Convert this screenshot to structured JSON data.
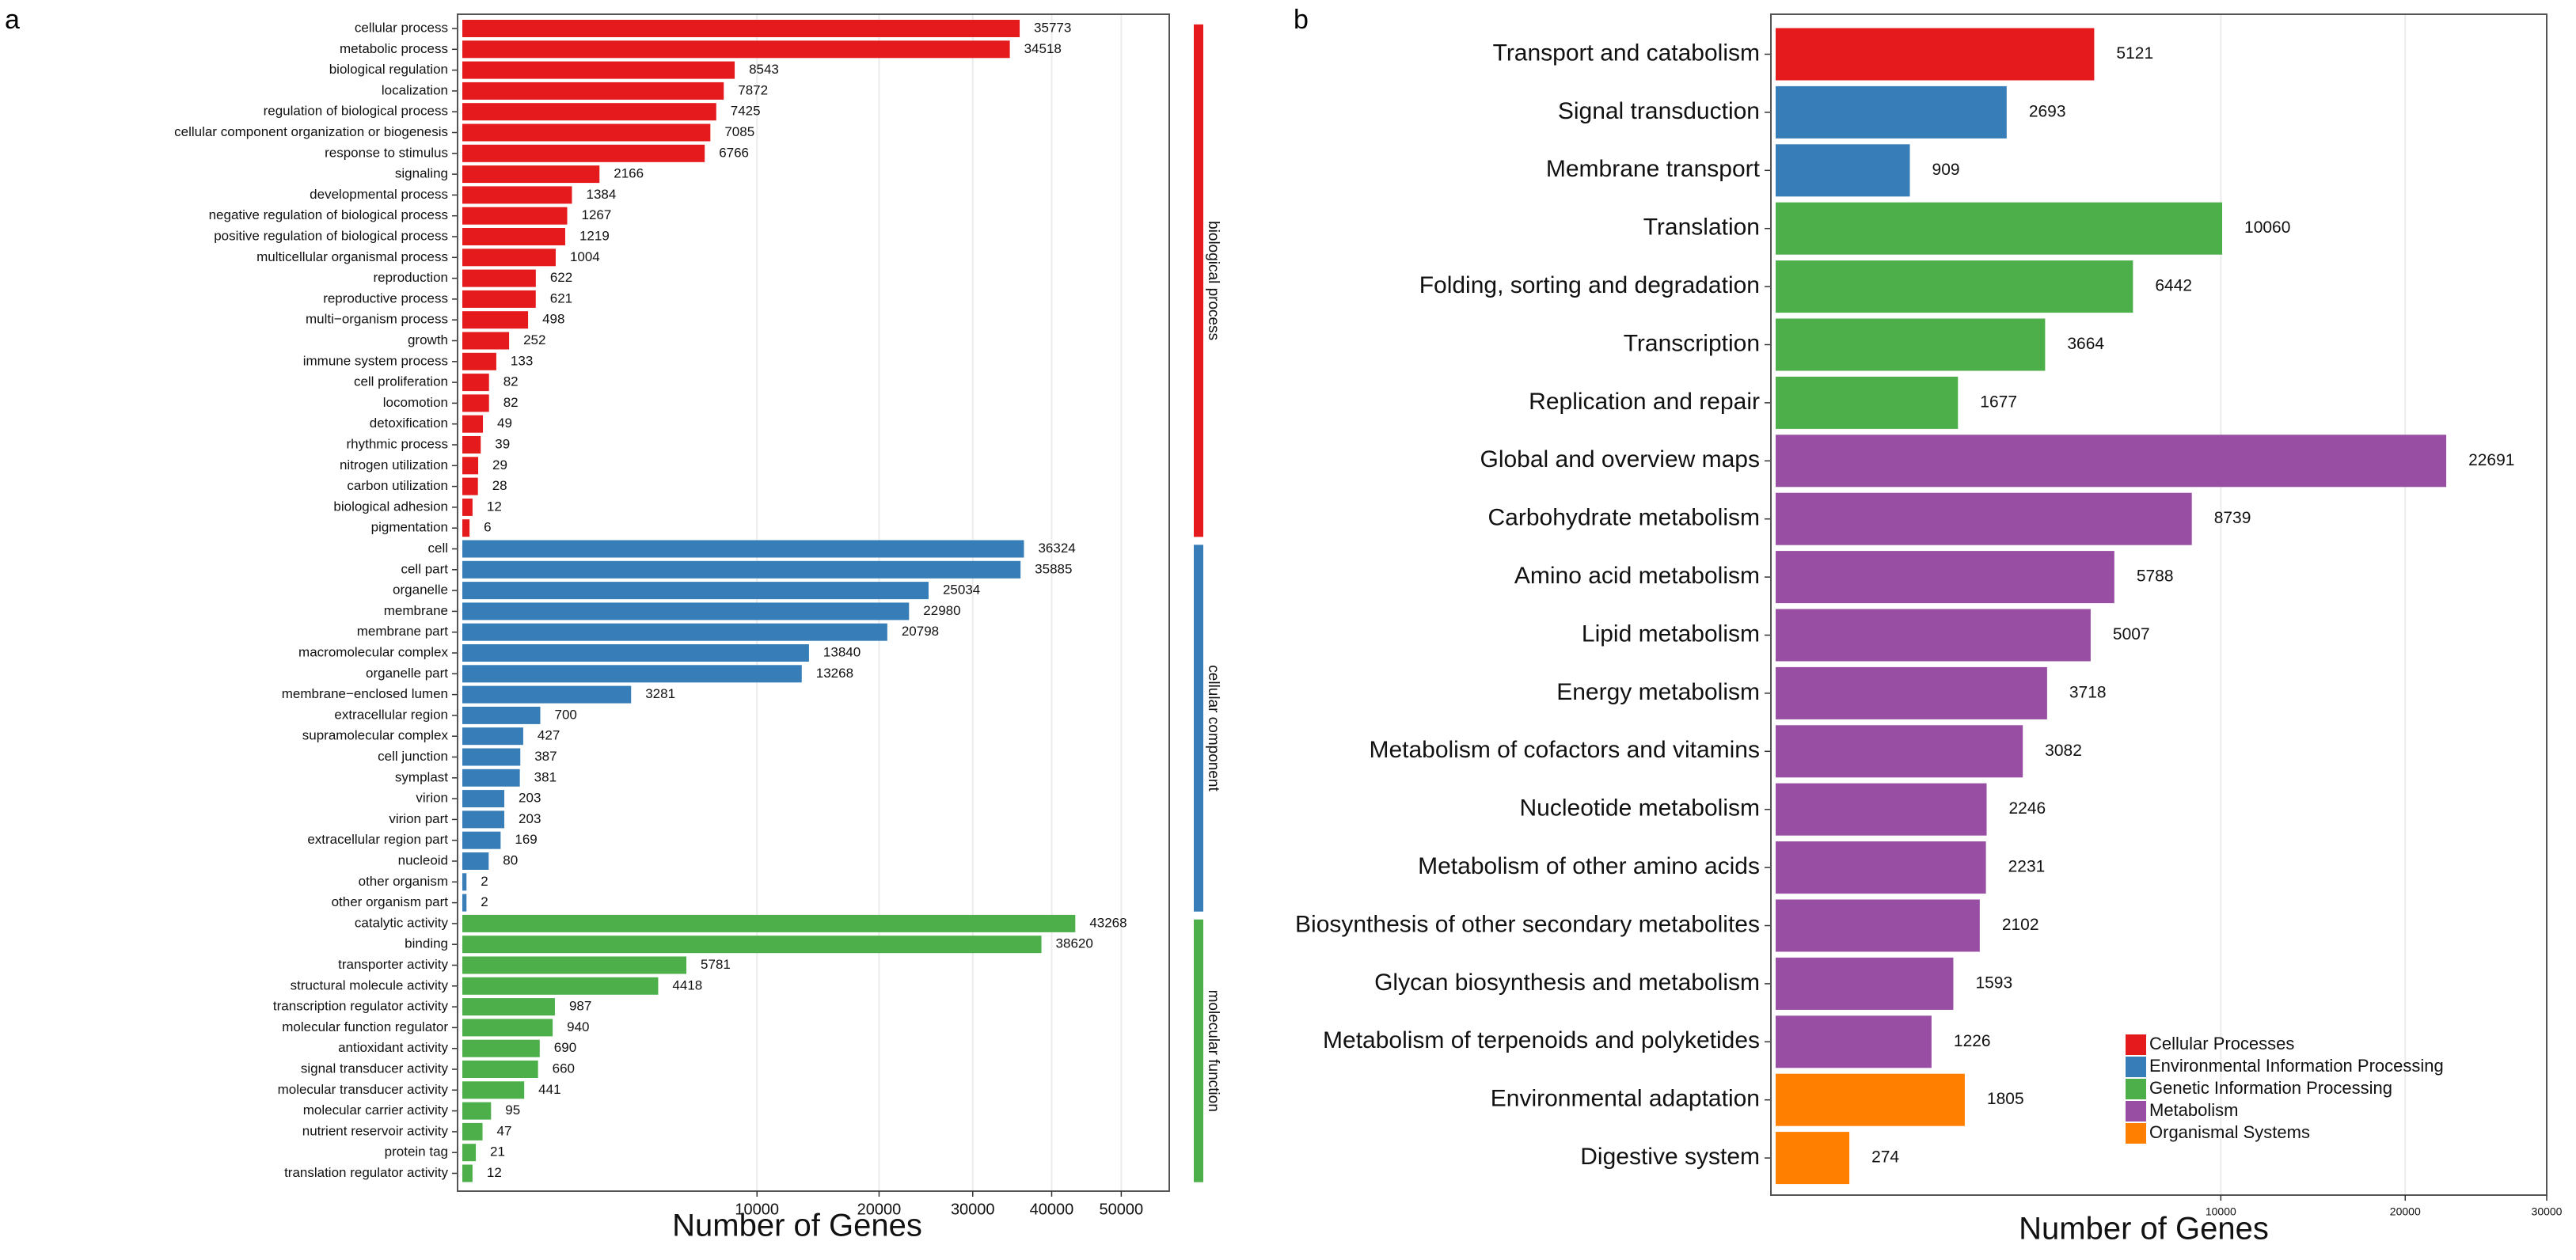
{
  "figure": {
    "panel_a_label": "a",
    "panel_b_label": "b"
  },
  "colors": {
    "biological_process": "#e41a1c",
    "cellular_component": "#377eb8",
    "molecular_function": "#4daf4a",
    "cellular_processes": "#e41a1c",
    "environmental_information_processing": "#377eb8",
    "genetic_information_processing": "#4daf4a",
    "metabolism": "#984ea3",
    "organismal_systems": "#ff7f00"
  },
  "chart_data": [
    {
      "type": "bar",
      "orientation": "horizontal",
      "panel": "a",
      "title": "",
      "xlabel": "Number of Genes",
      "ylabel": "",
      "xscale": "sqrt",
      "xlim": [
        0,
        55000
      ],
      "xticks": [
        10000,
        20000,
        30000,
        40000,
        50000
      ],
      "legend": "strip-right",
      "groups": [
        {
          "name": "biological process",
          "color": "#e41a1c",
          "categories": [
            "cellular process",
            "metabolic process",
            "biological regulation",
            "localization",
            "regulation of biological process",
            "cellular component organization or biogenesis",
            "response to stimulus",
            "signaling",
            "developmental process",
            "negative regulation of biological process",
            "positive regulation of biological process",
            "multicellular organismal process",
            "reproduction",
            "reproductive process",
            "multi−organism process",
            "growth",
            "immune system process",
            "cell proliferation",
            "locomotion",
            "detoxification",
            "rhythmic process",
            "nitrogen utilization",
            "carbon utilization",
            "biological adhesion",
            "pigmentation"
          ],
          "values": [
            35773,
            34518,
            8543,
            7872,
            7425,
            7085,
            6766,
            2166,
            1384,
            1267,
            1219,
            1004,
            622,
            621,
            498,
            252,
            133,
            82,
            82,
            49,
            39,
            29,
            28,
            12,
            6
          ]
        },
        {
          "name": "cellular component",
          "color": "#377eb8",
          "categories": [
            "cell",
            "cell part",
            "organelle",
            "membrane",
            "membrane part",
            "macromolecular complex",
            "organelle part",
            "membrane−enclosed lumen",
            "extracellular region",
            "supramolecular complex",
            "cell junction",
            "symplast",
            "virion",
            "virion part",
            "extracellular region part",
            "nucleoid",
            "other organism",
            "other organism part"
          ],
          "values": [
            36324,
            35885,
            25034,
            22980,
            20798,
            13840,
            13268,
            3281,
            700,
            427,
            387,
            381,
            203,
            203,
            169,
            80,
            2,
            2
          ]
        },
        {
          "name": "molecular function",
          "color": "#4daf4a",
          "categories": [
            "catalytic activity",
            "binding",
            "transporter activity",
            "structural molecule activity",
            "transcription regulator activity",
            "molecular function regulator",
            "antioxidant activity",
            "signal transducer activity",
            "molecular transducer activity",
            "molecular carrier activity",
            "nutrient reservoir activity",
            "protein tag",
            "translation regulator activity"
          ],
          "values": [
            43268,
            38620,
            5781,
            4418,
            987,
            940,
            690,
            660,
            441,
            95,
            47,
            21,
            12
          ]
        }
      ]
    },
    {
      "type": "bar",
      "orientation": "horizontal",
      "panel": "b",
      "title": "",
      "xlabel": "Number of Genes",
      "ylabel": "",
      "xscale": "sqrt",
      "xlim": [
        0,
        30000
      ],
      "xticks": [
        10000,
        20000,
        30000
      ],
      "legend": "bottom-right",
      "categories": [
        "Transport and catabolism",
        "Signal transduction",
        "Membrane transport",
        "Translation",
        "Folding, sorting and degradation",
        "Transcription",
        "Replication and repair",
        "Global and overview maps",
        "Carbohydrate metabolism",
        "Amino acid metabolism",
        "Lipid metabolism",
        "Energy metabolism",
        "Metabolism of cofactors and vitamins",
        "Nucleotide metabolism",
        "Metabolism of other amino acids",
        "Biosynthesis of other secondary metabolites",
        "Glycan biosynthesis and metabolism",
        "Metabolism of terpenoids and polyketides",
        "Environmental adaptation",
        "Digestive system"
      ],
      "values": [
        5121,
        2693,
        909,
        10060,
        6442,
        3664,
        1677,
        22691,
        8739,
        5788,
        5007,
        3718,
        3082,
        2246,
        2231,
        2102,
        1593,
        1226,
        1805,
        274
      ],
      "classes": [
        "Cellular Processes",
        "Environmental Information Processing",
        "Environmental Information Processing",
        "Genetic Information Processing",
        "Genetic Information Processing",
        "Genetic Information Processing",
        "Genetic Information Processing",
        "Metabolism",
        "Metabolism",
        "Metabolism",
        "Metabolism",
        "Metabolism",
        "Metabolism",
        "Metabolism",
        "Metabolism",
        "Metabolism",
        "Metabolism",
        "Metabolism",
        "Organismal Systems",
        "Organismal Systems"
      ],
      "legend_items": [
        {
          "name": "Cellular Processes",
          "color": "#e41a1c"
        },
        {
          "name": "Environmental Information Processing",
          "color": "#377eb8"
        },
        {
          "name": "Genetic Information Processing",
          "color": "#4daf4a"
        },
        {
          "name": "Metabolism",
          "color": "#984ea3"
        },
        {
          "name": "Organismal Systems",
          "color": "#ff7f00"
        }
      ]
    }
  ]
}
